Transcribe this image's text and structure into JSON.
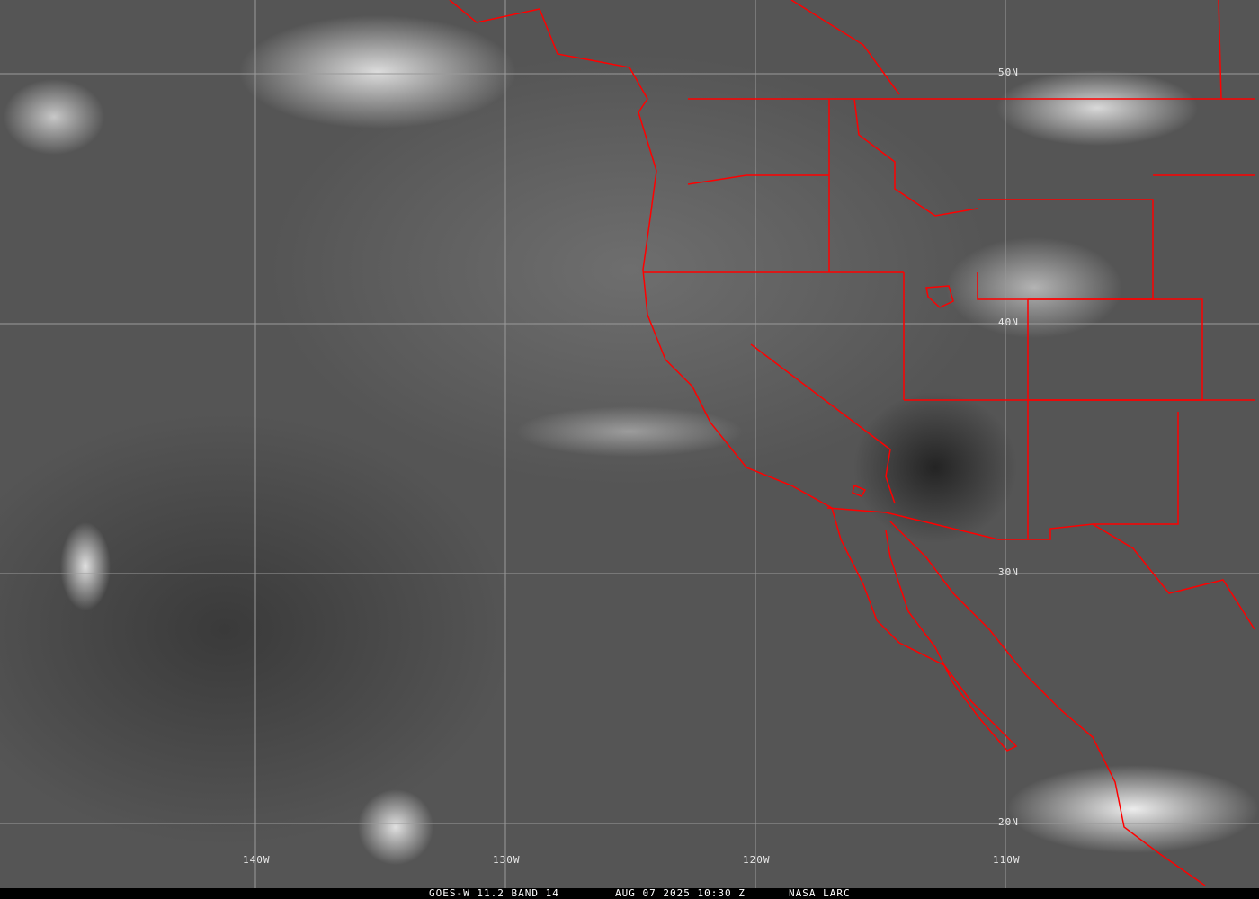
{
  "image": {
    "type": "satellite infrared imagery",
    "colors": {
      "borders": "#ff0000",
      "grid": "#9a9a9a",
      "caption_bg": "#000000",
      "caption_text": "#ffffff"
    }
  },
  "grid_labels": {
    "latitudes": [
      "50N",
      "40N",
      "30N",
      "20N"
    ],
    "longitudes": [
      "140W",
      "130W",
      "120W",
      "110W"
    ]
  },
  "caption": {
    "product": "GOES-W 11.2 BAND 14",
    "datetime": "AUG 07 2025 10:30 Z",
    "source": "NASA LARC"
  }
}
